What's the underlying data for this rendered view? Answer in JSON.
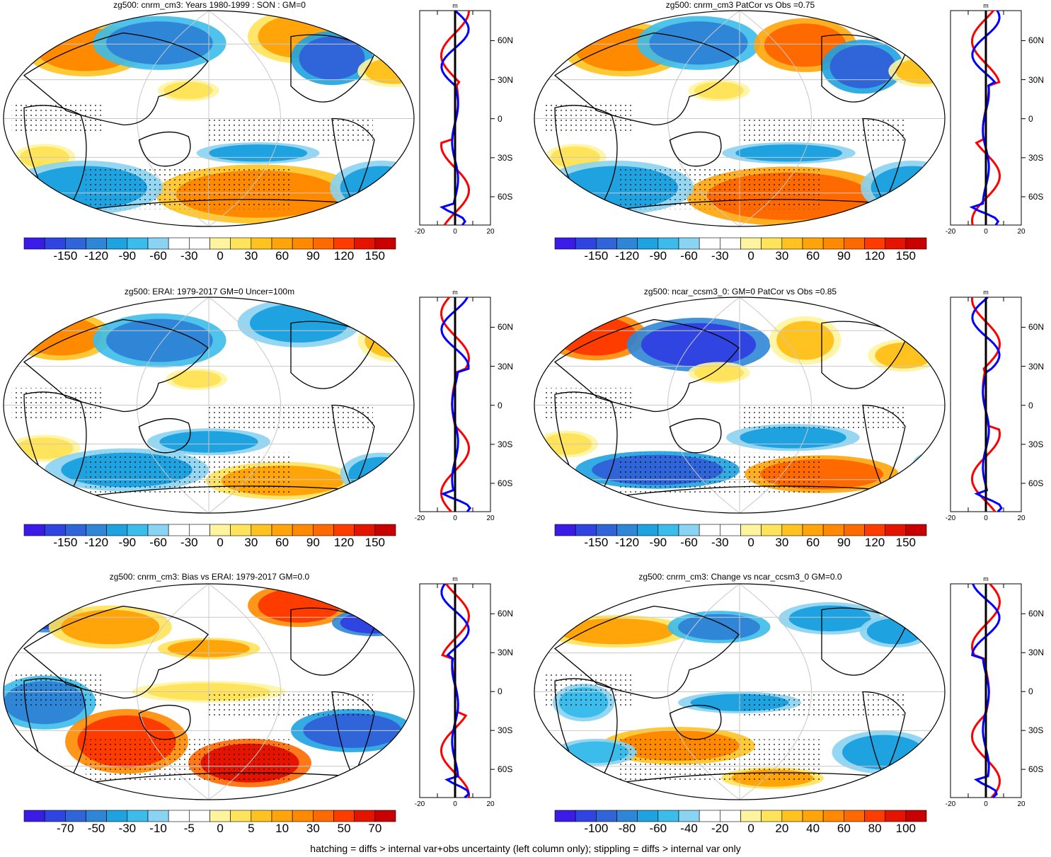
{
  "footer": "hatching = diffs > internal var+obs uncertainty (left column only); stippling = diffs > internal var only",
  "colors": {
    "palette": [
      "#3a1ce6",
      "#2f44e0",
      "#2f65d8",
      "#2f86d6",
      "#1fa2e0",
      "#3cbcea",
      "#8ad3f2",
      "#ffffff",
      "#ffffff",
      "#fff49e",
      "#ffe35a",
      "#ffc21f",
      "#ffa50a",
      "#ff8a00",
      "#ff6a00",
      "#ff3c00",
      "#e51400",
      "#c80000"
    ],
    "grid": "#c8c8c8",
    "obs_line": "#000000",
    "north_line": "#0000ff",
    "south_line": "#ff0000"
  },
  "panels": [
    {
      "id": "p1",
      "title": "zg500: cnrm_cm3: Years 1980-1999 : SON : GM=0",
      "colorbar_labels": [
        "-150",
        "-120",
        "-90",
        "-60",
        "-30",
        "0",
        "30",
        "60",
        "90",
        "120",
        "150"
      ],
      "lat_labels": [
        "60N",
        "30N",
        "0",
        "30S",
        "60S"
      ],
      "profile_ticks": [
        "-20",
        "0",
        "20"
      ],
      "profile_unit": "m"
    },
    {
      "id": "p2",
      "title": "zg500: cnrm_cm3 PatCor vs Obs =0.75",
      "colorbar_labels": [
        "-150",
        "-120",
        "-90",
        "-60",
        "-30",
        "0",
        "30",
        "60",
        "90",
        "120",
        "150"
      ],
      "lat_labels": [
        "60N",
        "30N",
        "0",
        "30S",
        "60S"
      ],
      "profile_ticks": [
        "-20",
        "0",
        "20"
      ],
      "profile_unit": "m"
    },
    {
      "id": "p3",
      "title": "zg500: ERAI: 1979-2017 GM=0 Uncer=100m",
      "colorbar_labels": [
        "-150",
        "-120",
        "-90",
        "-60",
        "-30",
        "0",
        "30",
        "60",
        "90",
        "120",
        "150"
      ],
      "lat_labels": [
        "60N",
        "30N",
        "0",
        "30S",
        "60S"
      ],
      "profile_ticks": [
        "-20",
        "0",
        "20"
      ],
      "profile_unit": "m"
    },
    {
      "id": "p4",
      "title": "zg500: ncar_ccsm3_0: GM=0 PatCor vs Obs =0.85",
      "colorbar_labels": [
        "-150",
        "-120",
        "-90",
        "-60",
        "-30",
        "0",
        "30",
        "60",
        "90",
        "120",
        "150"
      ],
      "lat_labels": [
        "60N",
        "30N",
        "0",
        "30S",
        "60S"
      ],
      "profile_ticks": [
        "-20",
        "0",
        "20"
      ],
      "profile_unit": "m"
    },
    {
      "id": "p5",
      "title": "zg500: cnrm_cm3: Bias vs ERAI: 1979-2017  GM=0.0",
      "colorbar_labels": [
        "-70",
        "-50",
        "-30",
        "-10",
        "-5",
        "0",
        "5",
        "10",
        "30",
        "50",
        "70"
      ],
      "lat_labels": [
        "60N",
        "30N",
        "0",
        "30S",
        "60S"
      ],
      "profile_ticks": [
        "-20",
        "0",
        "20"
      ],
      "profile_unit": "m"
    },
    {
      "id": "p6",
      "title": "zg500: cnrm_cm3: Change vs ncar_ccsm3_0 GM=0.0",
      "colorbar_labels": [
        "-100",
        "-80",
        "-60",
        "-40",
        "-20",
        "0",
        "20",
        "40",
        "60",
        "80",
        "100"
      ],
      "lat_labels": [
        "60N",
        "30N",
        "0",
        "30S",
        "60S"
      ],
      "profile_ticks": [
        "-20",
        "0",
        "20"
      ],
      "profile_unit": "m"
    }
  ]
}
